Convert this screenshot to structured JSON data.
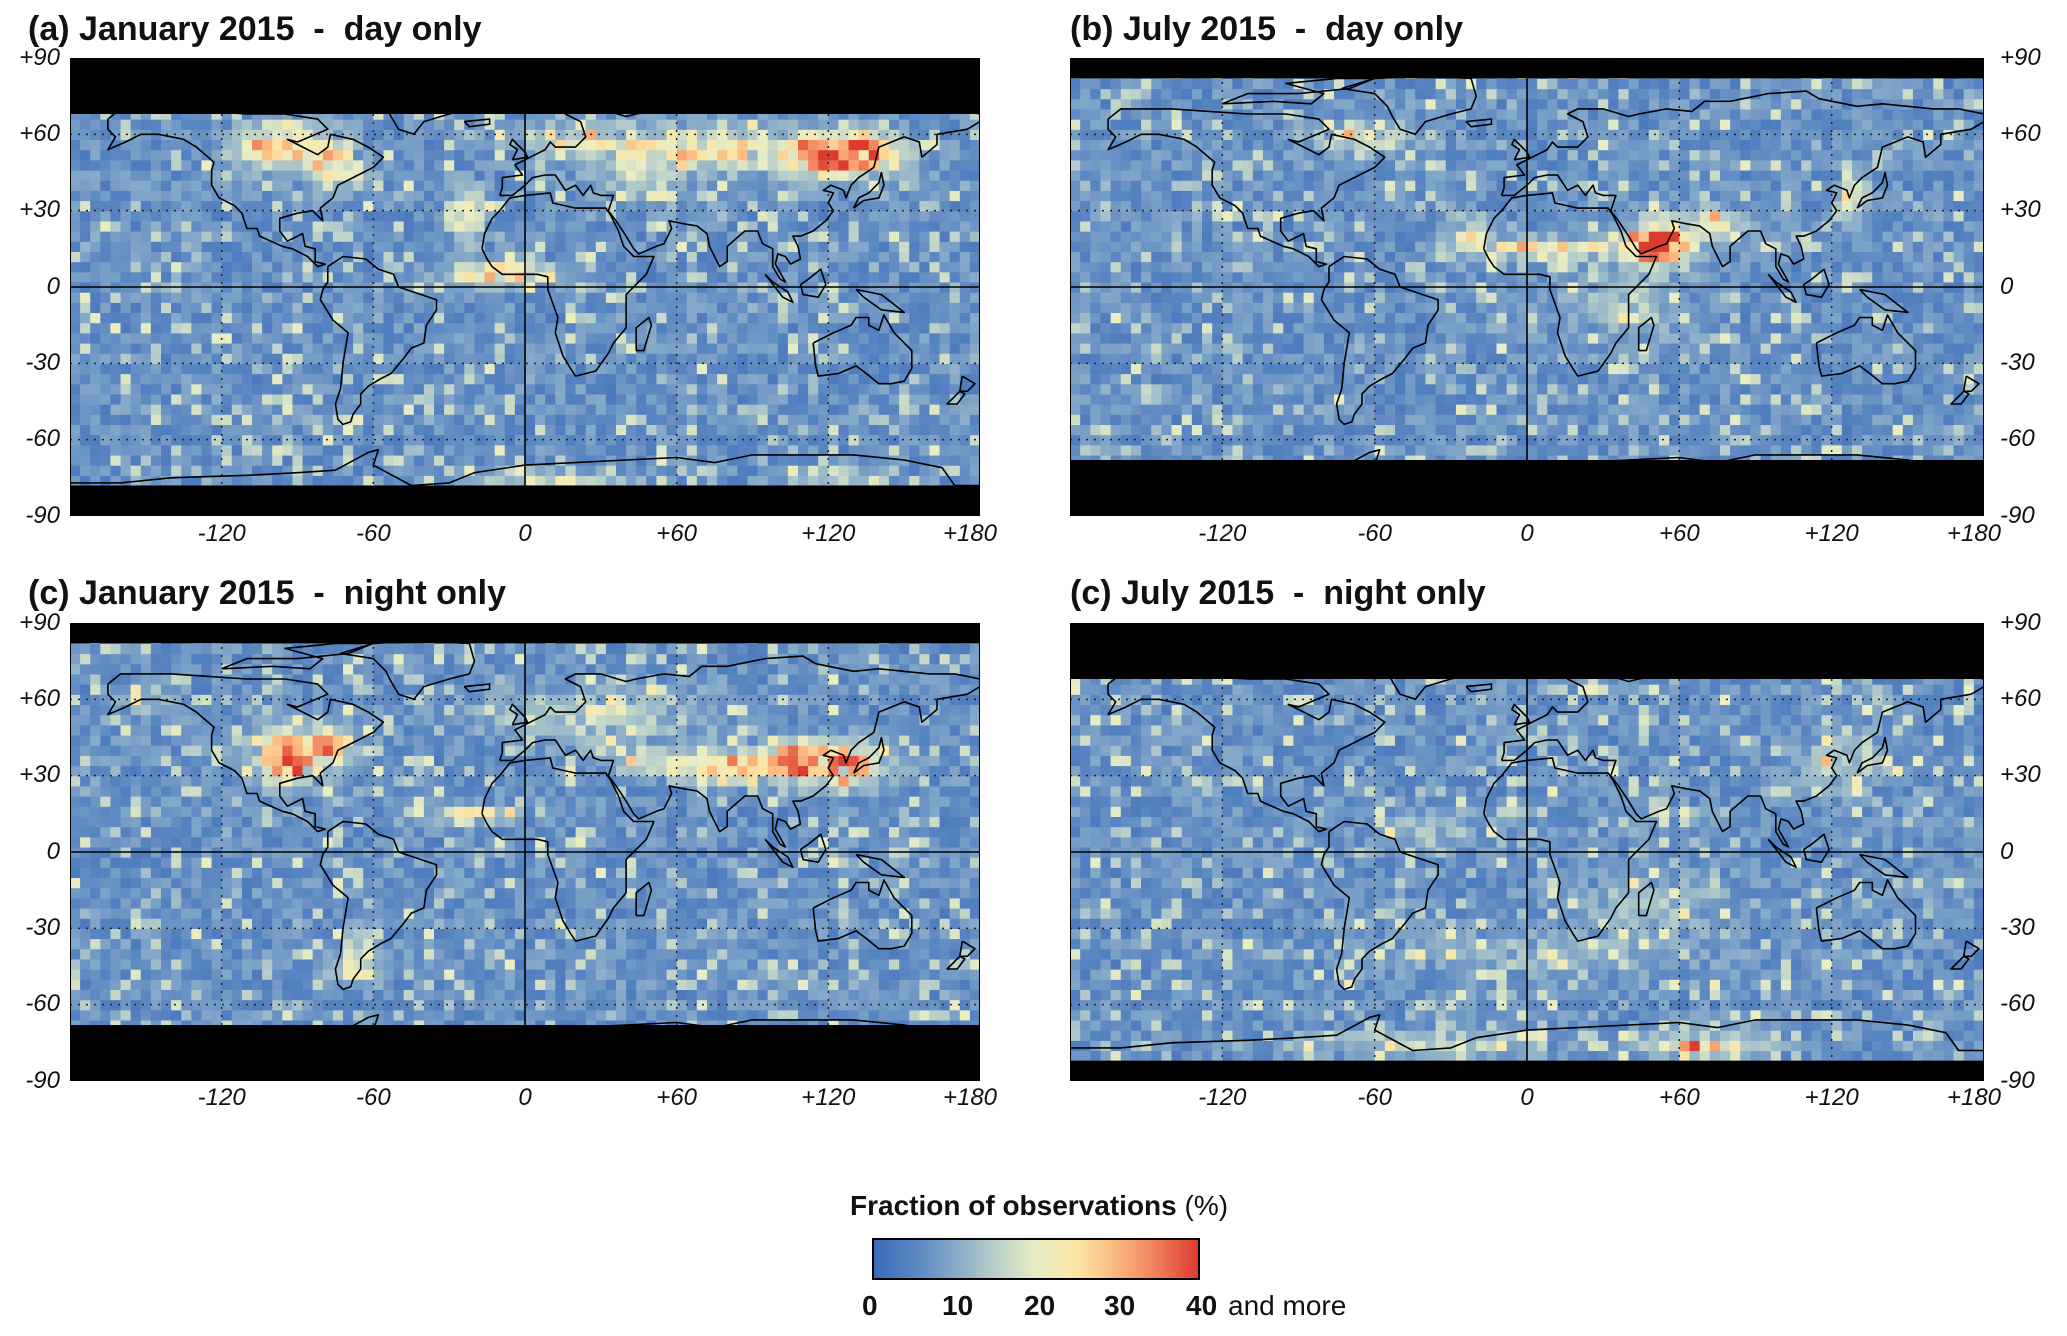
{
  "panels": [
    {
      "title": "(a) January 2015  -  day only",
      "month": "January",
      "time": "day",
      "mask_north": 68,
      "mask_south": -78
    },
    {
      "title": "(b) July 2015  -  day only",
      "month": "July",
      "time": "day",
      "mask_north": 82,
      "mask_south": -68
    },
    {
      "title": "(c) January 2015  -  night only",
      "month": "January",
      "time": "night",
      "mask_north": 82,
      "mask_south": -68
    },
    {
      "title": "(c) July 2015  -  night only",
      "month": "July",
      "time": "night",
      "mask_north": 68,
      "mask_south": -82
    }
  ],
  "axes": {
    "lat_ticks": [
      "+90",
      "+60",
      "+30",
      "0",
      "-30",
      "-60",
      "-90"
    ],
    "lon_ticks": [
      "-120",
      "-60",
      "0",
      "+60",
      "+120",
      "+180"
    ],
    "lat_range": [
      -90,
      90
    ],
    "lon_range": [
      -180,
      180
    ]
  },
  "legend": {
    "title_bold": "Fraction of observations",
    "title_unit": " (%)",
    "ticks": [
      "0",
      "10",
      "20",
      "30",
      "40"
    ],
    "suffix": "and more",
    "range": [
      0,
      40
    ],
    "colors": [
      "#3b6ab8",
      "#5a86c2",
      "#86aac8",
      "#b9cfc9",
      "#e8edc4",
      "#fbe6a6",
      "#fbb77e",
      "#f07d5a",
      "#dc3b2e"
    ]
  },
  "colors": {
    "mask": "#000000",
    "ocean_base": "#4a77bd",
    "coast": "#000000"
  }
}
